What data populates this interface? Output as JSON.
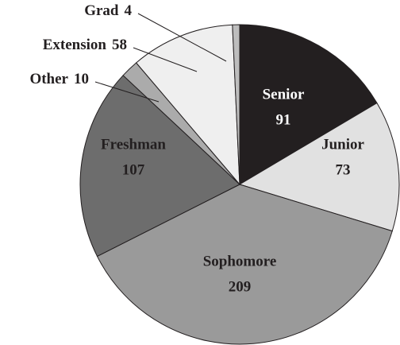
{
  "chart_data": {
    "type": "pie",
    "categories": [
      "Senior",
      "Junior",
      "Sophomore",
      "Freshman",
      "Other",
      "Extension",
      "Grad"
    ],
    "values": [
      91,
      73,
      209,
      107,
      10,
      58,
      4
    ],
    "colors": [
      "#231f20",
      "#e1e1e1",
      "#9a9a9a",
      "#6d6d6d",
      "#ababab",
      "#efefef",
      "#bdbdbd"
    ]
  }
}
